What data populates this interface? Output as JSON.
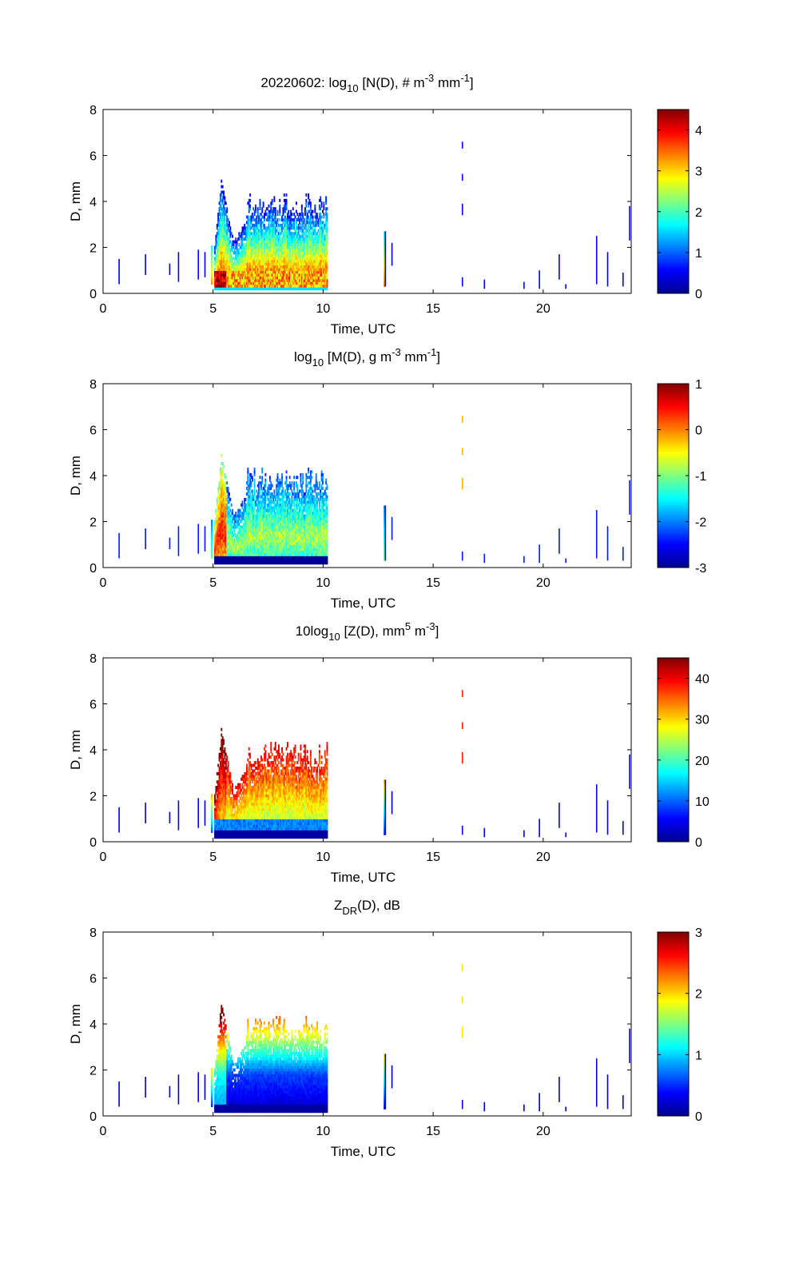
{
  "chart_data": [
    {
      "type": "heatmap",
      "title": "20220602: log10 [N(D), # m-3 mm-1]",
      "title_parts": {
        "pre": "20220602: log",
        "sub1": "10",
        "mid": " [N(D), # m",
        "sup1": "-3",
        "mid2": " mm",
        "sup2": "-1",
        "post": "]"
      },
      "xlabel": "Time, UTC",
      "ylabel": "D, mm",
      "xlim": [
        0,
        24
      ],
      "ylim": [
        0,
        8
      ],
      "xticks": [
        0,
        5,
        10,
        15,
        20
      ],
      "yticks": [
        0,
        2,
        4,
        6,
        8
      ],
      "colorbar": {
        "min": 0,
        "max": 4.5,
        "ticks": [
          0,
          1,
          2,
          3,
          4
        ],
        "colormap": "jet"
      },
      "grid": false,
      "regions": [
        {
          "x": [
            5.1,
            10.2
          ],
          "y": [
            0.15,
            4.2
          ],
          "description": "main precipitation event"
        }
      ]
    },
    {
      "type": "heatmap",
      "title": "log10 [M(D), g m-3 mm-1]",
      "title_parts": {
        "pre": "log",
        "sub1": "10",
        "mid": " [M(D), g m",
        "sup1": "-3",
        "mid2": " mm",
        "sup2": "-1",
        "post": "]"
      },
      "xlabel": "Time, UTC",
      "ylabel": "D, mm",
      "xlim": [
        0,
        24
      ],
      "ylim": [
        0,
        8
      ],
      "xticks": [
        0,
        5,
        10,
        15,
        20
      ],
      "yticks": [
        0,
        2,
        4,
        6,
        8
      ],
      "colorbar": {
        "min": -3,
        "max": 1,
        "ticks": [
          -3,
          -2,
          -1,
          0,
          1
        ],
        "colormap": "jet"
      },
      "grid": false
    },
    {
      "type": "heatmap",
      "title": "10log10 [Z(D), mm5 m-3]",
      "title_parts": {
        "pre": "10log",
        "sub1": "10",
        "mid": " [Z(D),  mm",
        "sup1": "5",
        "mid2": " m",
        "sup2": "-3",
        "post": "]"
      },
      "xlabel": "Time, UTC",
      "ylabel": "D, mm",
      "xlim": [
        0,
        24
      ],
      "ylim": [
        0,
        8
      ],
      "xticks": [
        0,
        5,
        10,
        15,
        20
      ],
      "yticks": [
        0,
        2,
        4,
        6,
        8
      ],
      "colorbar": {
        "min": 0,
        "max": 45,
        "ticks": [
          0,
          10,
          20,
          30,
          40
        ],
        "colormap": "jet"
      },
      "grid": false
    },
    {
      "type": "heatmap",
      "title": "ZDR(D), dB",
      "title_parts": {
        "pre": "Z",
        "sub1": "DR",
        "mid": "(D), dB",
        "sup1": "",
        "mid2": "",
        "sup2": "",
        "post": ""
      },
      "xlabel": "Time, UTC",
      "ylabel": "D, mm",
      "xlim": [
        0,
        24
      ],
      "ylim": [
        0,
        8
      ],
      "xticks": [
        0,
        5,
        10,
        15,
        20
      ],
      "yticks": [
        0,
        2,
        4,
        6,
        8
      ],
      "colorbar": {
        "min": 0,
        "max": 3,
        "ticks": [
          0,
          1,
          2,
          3
        ],
        "colormap": "jet"
      },
      "grid": false
    }
  ]
}
